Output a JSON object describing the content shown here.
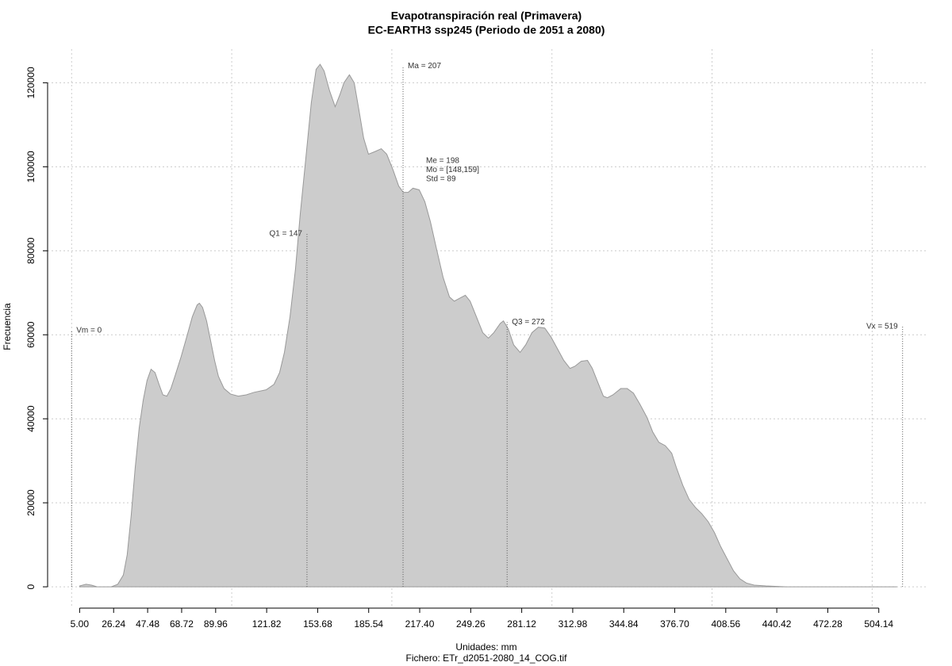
{
  "chart_data": {
    "type": "area",
    "title": "Evapotranspiración real (Primavera)",
    "subtitle": "EC-EARTH3 ssp245 (Periodo de 2051 a 2080)",
    "xlabel": "Unidades: mm",
    "caption": "Fichero: ETr_d2051-2080_14_COG.tif",
    "ylabel": "Frecuencia",
    "color": "#cccccc",
    "line_color": "#999999",
    "x": [
      5.0,
      9.0,
      12.4,
      15.9,
      24.8,
      28.8,
      32.3,
      34.7,
      37.2,
      39.7,
      42.2,
      44.7,
      47.1,
      49.6,
      52.1,
      54.6,
      57.0,
      59.5,
      62.0,
      64.5,
      68.4,
      71.9,
      75.4,
      78.4,
      79.8,
      81.8,
      84.3,
      86.8,
      89.3,
      91.7,
      95.2,
      99.2,
      104.1,
      109.1,
      114.0,
      121.5,
      126.4,
      129.9,
      132.9,
      136.4,
      139.8,
      142.8,
      146.3,
      149.7,
      152.7,
      155.2,
      157.7,
      161.1,
      164.6,
      167.6,
      170.1,
      173.5,
      176.5,
      179.5,
      182.4,
      185.4,
      189.4,
      193.4,
      196.8,
      200.8,
      204.3,
      207.2,
      210.2,
      213.2,
      217.1,
      220.6,
      224.1,
      228.0,
      232.0,
      236.0,
      239.0,
      242.9,
      245.9,
      248.9,
      252.8,
      256.8,
      260.3,
      263.7,
      267.7,
      269.7,
      272.7,
      276.1,
      280.1,
      283.6,
      287.5,
      291.5,
      295.5,
      299.4,
      303.4,
      307.4,
      311.3,
      314.3,
      318.3,
      322.2,
      325.2,
      328.2,
      332.1,
      334.6,
      338.1,
      343.0,
      347.0,
      350.9,
      354.9,
      359.4,
      362.9,
      366.8,
      370.8,
      374.8,
      377.7,
      381.7,
      385.7,
      389.6,
      393.6,
      397.6,
      401.5,
      405.5,
      409.5,
      413.4,
      417.4,
      421.4,
      426.3,
      433.7,
      446.2,
      515.5
    ],
    "values": [
      200,
      600,
      400,
      0,
      0,
      600,
      2800,
      7600,
      17000,
      28300,
      37800,
      44400,
      49100,
      51800,
      51000,
      48200,
      45700,
      45400,
      47200,
      50100,
      54800,
      59500,
      64300,
      67100,
      67500,
      66500,
      63300,
      58600,
      53900,
      50100,
      47200,
      45900,
      45400,
      45700,
      46300,
      46900,
      48200,
      51000,
      55800,
      64300,
      75600,
      88800,
      102100,
      115300,
      123200,
      124400,
      122800,
      118100,
      114300,
      117200,
      120000,
      121900,
      120000,
      113400,
      106800,
      103000,
      103600,
      104300,
      103000,
      99200,
      95400,
      93900,
      93900,
      94900,
      94500,
      91700,
      86900,
      80300,
      73700,
      69000,
      68000,
      68800,
      69400,
      68000,
      64300,
      60500,
      59200,
      60500,
      62700,
      63300,
      61400,
      57600,
      55800,
      57600,
      60500,
      61800,
      61600,
      59500,
      56700,
      53900,
      52000,
      52500,
      53700,
      53900,
      52000,
      49100,
      45400,
      45000,
      45700,
      47200,
      47200,
      46100,
      43500,
      40300,
      36900,
      34400,
      33600,
      31800,
      28400,
      24200,
      20800,
      18900,
      17400,
      15500,
      12900,
      9500,
      6600,
      3800,
      1900,
      900,
      400,
      200,
      0,
      0
    ],
    "xlim": [
      -15,
      535
    ],
    "ylim": [
      -4700,
      128000
    ],
    "xticks": [
      {
        "value": 5,
        "label": "5.00"
      },
      26.24,
      47.48,
      68.72,
      89.96,
      121.82,
      153.68,
      185.54,
      {
        "value": 217.4,
        "label": "217.40"
      },
      249.26,
      281.12,
      312.98,
      344.84,
      {
        "value": 376.7,
        "label": "376.70"
      },
      408.56,
      440.42,
      472.28,
      504.14
    ],
    "yticks": [
      0,
      20000,
      40000,
      60000,
      80000,
      100000,
      120000
    ],
    "xgrid": [
      0,
      100,
      200,
      300,
      400,
      500
    ],
    "grid": true,
    "annotations": [
      {
        "text": "Vm = 0",
        "x": 0,
        "y": 61000
      },
      {
        "text": "Q1 = 147",
        "x": 147,
        "y": 84000
      },
      {
        "text": "Ma = 207",
        "x": 207,
        "y": 124000
      },
      {
        "text": "Q3 = 272",
        "x": 272,
        "y": 63000
      },
      {
        "text": "Vx = 519",
        "x": 519,
        "y": 62000
      }
    ],
    "stats_text": [
      "Me = 198",
      "Mo = [148,159]",
      "Std = 89"
    ]
  }
}
